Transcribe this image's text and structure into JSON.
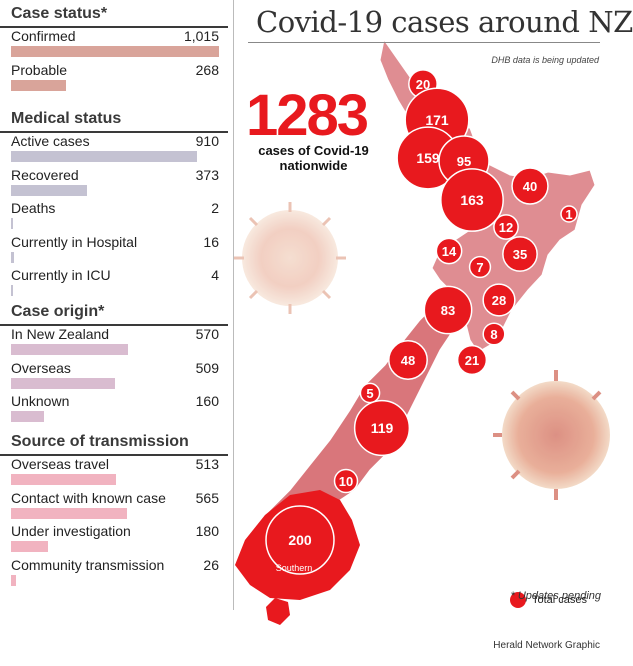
{
  "title": "Covid-19 cases around NZ",
  "dhb_note": "DHB data is being updated",
  "total": "1283",
  "total_sub": "cases of Covid-19 nationwide",
  "footnote": "* Updates pending",
  "legend_label": "Total cases",
  "credit": "Herald Network Graphic",
  "map_label_southern": "Southern",
  "colors": {
    "accent": "#e8191e",
    "case_status": "#d9a49a",
    "medical": "#c4c2d2",
    "origin": "#d9bcd0",
    "transmission": "#f1b3c0"
  },
  "chart_data": [
    {
      "type": "bar",
      "title": "Case status*",
      "max": 1015,
      "rows": [
        {
          "label": "Confirmed",
          "value": 1015,
          "display": "1,015"
        },
        {
          "label": "Probable",
          "value": 268,
          "display": "268"
        }
      ]
    },
    {
      "type": "bar",
      "title": "Medical status",
      "max": 1015,
      "rows": [
        {
          "label": "Active cases",
          "value": 910,
          "display": "910"
        },
        {
          "label": "Recovered",
          "value": 373,
          "display": "373"
        },
        {
          "label": "Deaths",
          "value": 2,
          "display": "2"
        },
        {
          "label": "Currently in Hospital",
          "value": 16,
          "display": "16"
        },
        {
          "label": "Currently in ICU",
          "value": 4,
          "display": "4"
        }
      ]
    },
    {
      "type": "bar",
      "title": "Case origin*",
      "max": 1015,
      "rows": [
        {
          "label": "In New Zealand",
          "value": 570,
          "display": "570"
        },
        {
          "label": "Overseas",
          "value": 509,
          "display": "509"
        },
        {
          "label": "Unknown",
          "value": 160,
          "display": "160"
        }
      ]
    },
    {
      "type": "bar",
      "title": "Source of transmission",
      "max": 1015,
      "rows": [
        {
          "label": "Overseas travel",
          "value": 513,
          "display": "513"
        },
        {
          "label": "Contact with known case",
          "value": 565,
          "display": "565"
        },
        {
          "label": "Under investigation",
          "value": 180,
          "display": "180"
        },
        {
          "label": "Community transmission",
          "value": 26,
          "display": "26"
        }
      ]
    },
    {
      "type": "scatter",
      "title": "",
      "series": [
        {
          "name": "Total cases",
          "points": [
            {
              "region": "",
              "value": 20
            },
            {
              "region": "",
              "value": 171
            },
            {
              "region": "",
              "value": 159
            },
            {
              "region": "",
              "value": 95
            },
            {
              "region": "",
              "value": 163
            },
            {
              "region": "",
              "value": 40
            },
            {
              "region": "",
              "value": 1
            },
            {
              "region": "",
              "value": 12
            },
            {
              "region": "",
              "value": 14
            },
            {
              "region": "",
              "value": 35
            },
            {
              "region": "",
              "value": 7
            },
            {
              "region": "",
              "value": 83
            },
            {
              "region": "",
              "value": 28
            },
            {
              "region": "",
              "value": 8
            },
            {
              "region": "",
              "value": 21
            },
            {
              "region": "",
              "value": 48
            },
            {
              "region": "",
              "value": 5
            },
            {
              "region": "",
              "value": 119
            },
            {
              "region": "",
              "value": 10
            },
            {
              "region": "Southern",
              "value": 200
            }
          ]
        }
      ]
    }
  ]
}
